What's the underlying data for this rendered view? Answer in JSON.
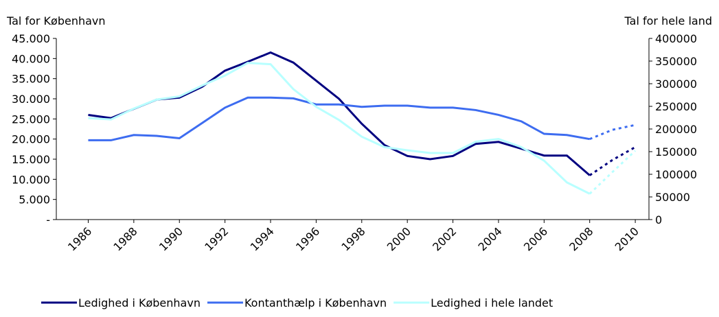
{
  "chart_data": {
    "type": "line",
    "y_axis_label": "Tal for København",
    "y2_axis_label": "Tal for hele land",
    "x": [
      1986,
      1987,
      1988,
      1989,
      1990,
      1991,
      1992,
      1993,
      1994,
      1995,
      1996,
      1997,
      1998,
      1999,
      2000,
      2001,
      2002,
      2003,
      2004,
      2005,
      2006,
      2007,
      2008,
      2009,
      2010
    ],
    "xlim": [
      1984.6,
      2010.6
    ],
    "xticks": [
      1986,
      1988,
      1990,
      1992,
      1994,
      1996,
      1998,
      2000,
      2002,
      2004,
      2006,
      2008,
      2010
    ],
    "ylim": [
      0,
      45000
    ],
    "yticks": [
      {
        "value": 0,
        "label": "-"
      },
      {
        "value": 5000,
        "label": "5.000"
      },
      {
        "value": 10000,
        "label": "10.000"
      },
      {
        "value": 15000,
        "label": "15.000"
      },
      {
        "value": 20000,
        "label": "20.000"
      },
      {
        "value": 25000,
        "label": "25.000"
      },
      {
        "value": 30000,
        "label": "30.000"
      },
      {
        "value": 35000,
        "label": "35.000"
      },
      {
        "value": 40000,
        "label": "40.000"
      },
      {
        "value": 45000,
        "label": "45.000"
      }
    ],
    "y2lim": [
      0,
      400000
    ],
    "y2ticks": [
      0,
      50000,
      100000,
      150000,
      200000,
      250000,
      300000,
      350000,
      400000
    ],
    "forecast_from": 2008,
    "legend": "bottom",
    "series": [
      {
        "name": "Ledighed i København",
        "color": "#000080",
        "axis": "y",
        "values": [
          26000,
          25200,
          27500,
          29800,
          30300,
          33000,
          37000,
          39200,
          41500,
          39000,
          34500,
          30000,
          23800,
          18500,
          15800,
          15000,
          15800,
          18800,
          19300,
          17600,
          15900,
          15900,
          11000,
          14800,
          18000
        ]
      },
      {
        "name": "Kontanthælp i København",
        "color": "#3d6cf0",
        "axis": "y",
        "values": [
          19700,
          19700,
          21000,
          20800,
          20200,
          24000,
          27800,
          30300,
          30300,
          30100,
          28600,
          28600,
          28000,
          28300,
          28300,
          27800,
          27800,
          27200,
          26000,
          24400,
          21300,
          21000,
          20000,
          22300,
          23500
        ]
      },
      {
        "name": "Ledighed i hele landet",
        "color": "#b8ffff",
        "axis": "y2",
        "values": [
          224000,
          221000,
          245000,
          265000,
          272000,
          296000,
          318000,
          346000,
          343000,
          288000,
          249000,
          220000,
          183000,
          160000,
          153000,
          147000,
          147000,
          172000,
          178000,
          160000,
          130000,
          82000,
          57000,
          105000,
          152000
        ]
      }
    ]
  }
}
